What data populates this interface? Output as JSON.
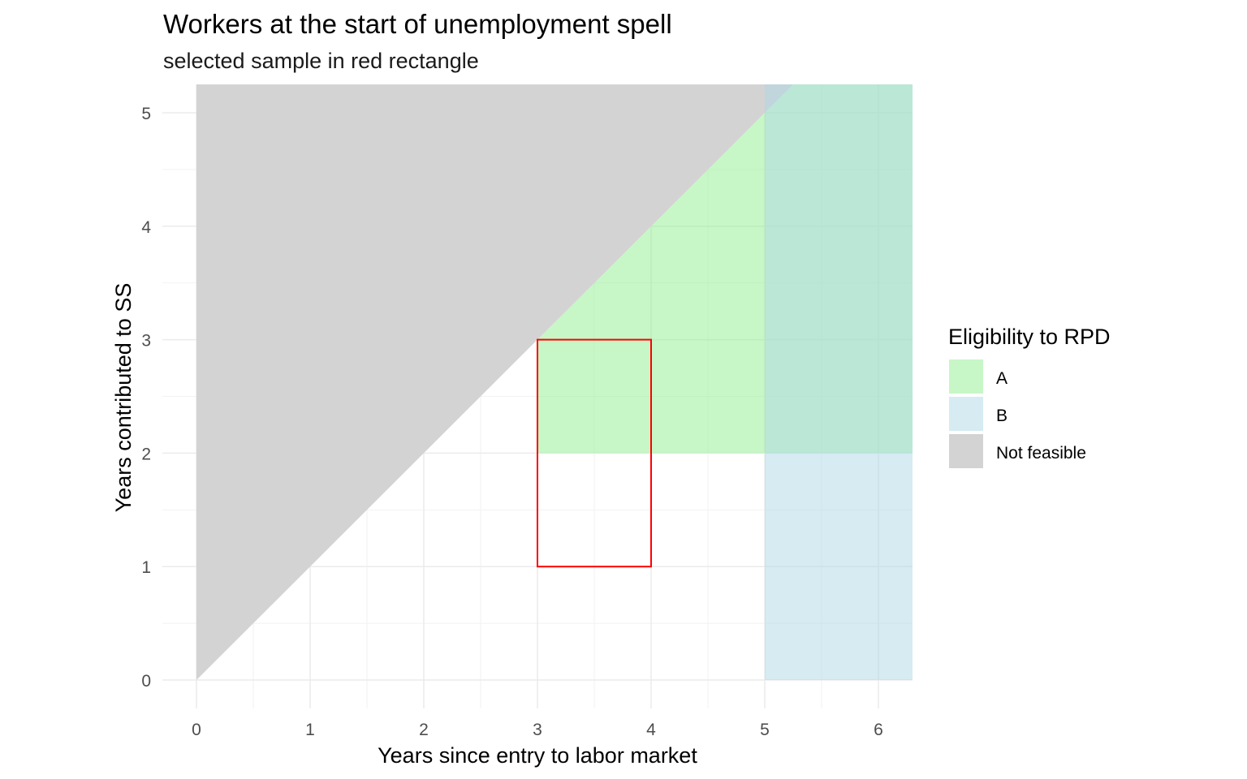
{
  "chart_data": {
    "type": "area",
    "title": "Workers at the start of unemployment spell",
    "subtitle": "selected sample in red rectangle",
    "xlabel": "Years since entry to labor market",
    "ylabel": "Years contributed to SS",
    "xlim": [
      -0.3,
      6.3
    ],
    "ylim": [
      -0.25,
      5.25
    ],
    "x_ticks": [
      0,
      1,
      2,
      3,
      4,
      5,
      6
    ],
    "y_ticks": [
      0,
      1,
      2,
      3,
      4,
      5
    ],
    "grid": true,
    "legend": {
      "title": "Eligibility to RPD",
      "position": "right",
      "entries": [
        {
          "label": "A",
          "color": "#90EE90",
          "alpha": 0.5
        },
        {
          "label": "B",
          "color": "#ADD8E6",
          "alpha": 0.5
        },
        {
          "label": "Not feasible",
          "color": "#D3D3D3",
          "alpha": 1
        }
      ]
    },
    "regions": [
      {
        "group": "Not feasible",
        "color": "#D3D3D3",
        "alpha": 1,
        "polygon": [
          [
            0,
            0
          ],
          [
            0,
            5.25
          ],
          [
            5.25,
            5.25
          ]
        ]
      },
      {
        "group": "A",
        "color": "#90EE90",
        "alpha": 0.5,
        "polygon": [
          [
            3,
            2
          ],
          [
            3,
            3
          ],
          [
            5.25,
            5.25
          ],
          [
            6.3,
            5.25
          ],
          [
            6.3,
            2
          ]
        ]
      },
      {
        "group": "B",
        "color": "#ADD8E6",
        "alpha": 0.5,
        "polygon": [
          [
            5,
            0
          ],
          [
            5,
            5.25
          ],
          [
            6.3,
            5.25
          ],
          [
            6.3,
            0
          ]
        ]
      }
    ],
    "highlight_rectangle": {
      "xmin": 3,
      "xmax": 4,
      "ymin": 1,
      "ymax": 3,
      "color": "#FF0000"
    }
  }
}
